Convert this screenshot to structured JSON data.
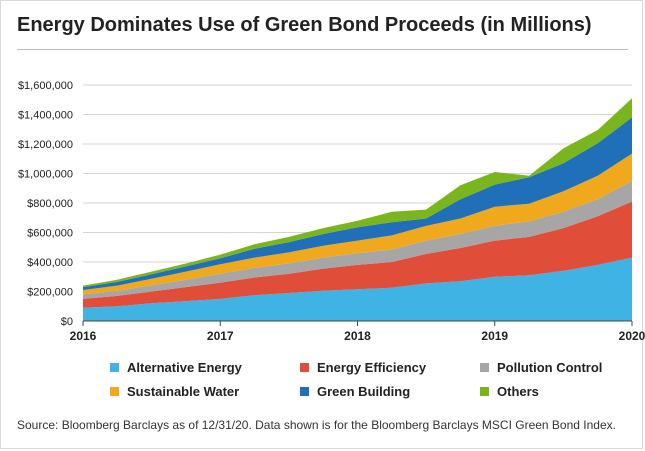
{
  "title": "Energy Dominates Use of Green Bond Proceeds (in Millions)",
  "source": "Source: Bloomberg Barclays as of 12/31/20. Data shown is for the Bloomberg Barclays MSCI Green Bond Index.",
  "chart_data": {
    "type": "area",
    "stacked": true,
    "title": "Energy Dominates Use of Green Bond Proceeds (in Millions)",
    "xlabel": "",
    "ylabel": "",
    "x": [
      2016.0,
      2016.25,
      2016.5,
      2016.75,
      2017.0,
      2017.25,
      2017.5,
      2017.75,
      2018.0,
      2018.25,
      2018.5,
      2018.75,
      2019.0,
      2019.25,
      2019.5,
      2019.75,
      2020.0
    ],
    "xticks": [
      2016,
      2017,
      2018,
      2019,
      2020
    ],
    "xlim": [
      2016,
      2020
    ],
    "ylim": [
      0,
      1600000
    ],
    "yticks": [
      0,
      200000,
      400000,
      600000,
      800000,
      1000000,
      1200000,
      1400000,
      1600000
    ],
    "ytick_labels": [
      "$0",
      "$200,000",
      "$400,000",
      "$600,000",
      "$800,000",
      "$1,000,000",
      "$1,200,000",
      "$1,400,000",
      "$1,600,000"
    ],
    "grid": "horizontal",
    "legend_position": "bottom",
    "series": [
      {
        "name": "Alternative Energy",
        "color": "#3fb3e3",
        "values": [
          90000,
          100000,
          120000,
          135000,
          150000,
          175000,
          190000,
          205000,
          215000,
          225000,
          255000,
          270000,
          300000,
          310000,
          340000,
          380000,
          430000
        ]
      },
      {
        "name": "Energy Efficiency",
        "color": "#e04e3a",
        "values": [
          60000,
          70000,
          80000,
          95000,
          110000,
          120000,
          130000,
          150000,
          165000,
          175000,
          200000,
          225000,
          245000,
          260000,
          290000,
          330000,
          380000
        ]
      },
      {
        "name": "Pollution Control",
        "color": "#a6a6a6",
        "values": [
          30000,
          35000,
          42000,
          50000,
          60000,
          65000,
          70000,
          75000,
          80000,
          85000,
          90000,
          95000,
          100000,
          105000,
          110000,
          115000,
          140000
        ]
      },
      {
        "name": "Sustainable Water",
        "color": "#f0a91c",
        "values": [
          30000,
          35000,
          45000,
          55000,
          65000,
          70000,
          75000,
          80000,
          85000,
          95000,
          100000,
          105000,
          130000,
          120000,
          140000,
          160000,
          185000
        ]
      },
      {
        "name": "Green Building",
        "color": "#1f70b8",
        "values": [
          20000,
          25000,
          30000,
          35000,
          40000,
          60000,
          70000,
          80000,
          90000,
          90000,
          50000,
          130000,
          150000,
          180000,
          190000,
          220000,
          245000
        ]
      },
      {
        "name": "Others",
        "color": "#7ab51d",
        "values": [
          10000,
          15000,
          18000,
          20000,
          25000,
          30000,
          35000,
          40000,
          45000,
          70000,
          60000,
          95000,
          85000,
          10000,
          100000,
          90000,
          130000
        ]
      }
    ]
  }
}
